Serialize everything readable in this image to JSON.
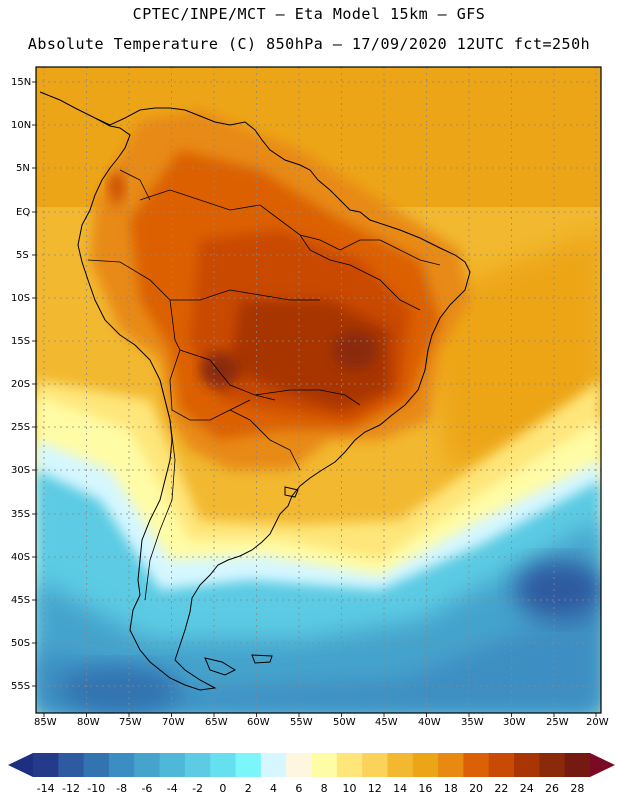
{
  "header": {
    "title_line1": "CPTEC/INPE/MCT —  Eta Model 15km — GFS",
    "title_line2": "Absolute Temperature (C) 850hPa — 17/09/2020 12UTC fct=250h"
  },
  "map": {
    "lat_labels": [
      "15N",
      "10N",
      "5N",
      "EQ",
      "5S",
      "10S",
      "15S",
      "20S",
      "25S",
      "30S",
      "35S",
      "40S",
      "45S",
      "50S",
      "55S"
    ],
    "lon_labels": [
      "85W",
      "80W",
      "75W",
      "70W",
      "65W",
      "60W",
      "55W",
      "50W",
      "45W",
      "40W",
      "35W",
      "30W",
      "25W",
      "20W"
    ],
    "lat_range": [
      "57S",
      "17N"
    ],
    "lon_range": [
      "86W",
      "20W"
    ],
    "grid": "dotted"
  },
  "colorbar": {
    "ticks": [
      "-14",
      "-12",
      "-10",
      "-8",
      "-6",
      "-4",
      "-2",
      "0",
      "2",
      "4",
      "6",
      "8",
      "10",
      "12",
      "14",
      "16",
      "18",
      "20",
      "22",
      "24",
      "26",
      "28"
    ],
    "colors": [
      "#243b8c",
      "#2d5aa0",
      "#3373b0",
      "#3c8ec2",
      "#45a3cc",
      "#4fb7d8",
      "#5ccbe3",
      "#66dfee",
      "#7cf6fb",
      "#d6f7ff",
      "#fff6df",
      "#fffca6",
      "#fee67a",
      "#fbd25a",
      "#f2b830",
      "#eda518",
      "#e88a12",
      "#dc6106",
      "#c94a04",
      "#a83503",
      "#8a2a0a",
      "#751a10"
    ],
    "under_color": "#1c2f80",
    "over_color": "#7a0a25"
  }
}
